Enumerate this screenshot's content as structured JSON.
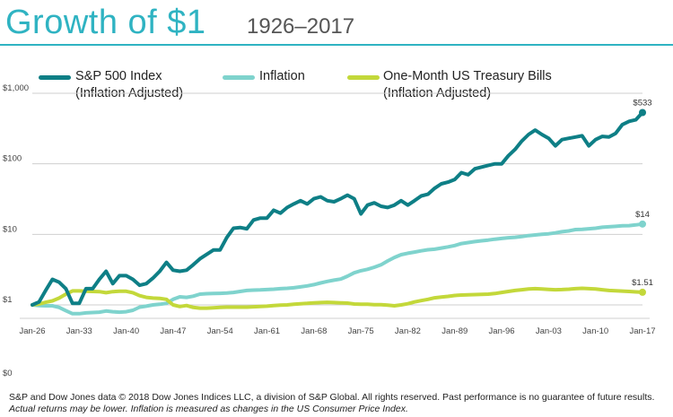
{
  "header": {
    "title": "Growth of $1",
    "subtitle": "1926–2017"
  },
  "legend": [
    {
      "label_line1": "S&P 500 Index",
      "label_line2": "(Inflation Adjusted)",
      "color": "#0e7f86"
    },
    {
      "label_line1": "Inflation",
      "label_line2": "",
      "color": "#7fd3cd"
    },
    {
      "label_line1": "One-Month US Treasury Bills",
      "label_line2": "(Inflation Adjusted)",
      "color": "#c3d83a"
    }
  ],
  "footer": {
    "line1": "S&P and Dow Jones data © 2018 Dow Jones Indices LLC, a division of S&P Global. All rights reserved. Past performance is no guarantee of future results.",
    "line2": "Actual returns may be lower. Inflation is measured as changes in the US Consumer Price Index."
  },
  "chart_data": {
    "type": "line",
    "title": "Growth of $1",
    "subtitle": "1926–2017",
    "xlabel": "",
    "ylabel": "",
    "y_scale": "log",
    "ylim": [
      1,
      1000
    ],
    "x_range": [
      1926,
      2017
    ],
    "x_ticks": [
      1926,
      1933,
      1940,
      1947,
      1954,
      1961,
      1968,
      1975,
      1982,
      1989,
      1996,
      2003,
      2010,
      2017
    ],
    "x_tick_labels": [
      "Jan-26",
      "Jan-33",
      "Jan-40",
      "Jan-47",
      "Jan-54",
      "Jan-61",
      "Jan-68",
      "Jan-75",
      "Jan-82",
      "Jan-89",
      "Jan-96",
      "Jan-03",
      "Jan-10",
      "Jan-17"
    ],
    "y_ticks": [
      1,
      10,
      100,
      1000
    ],
    "y_tick_labels": [
      "$1",
      "$10",
      "$100",
      "$1,000"
    ],
    "y_zero_label": "$0",
    "series": [
      {
        "name": "S&P 500 Index (Inflation Adjusted)",
        "color": "#0e7f86",
        "end_label": "$533",
        "x": [
          1926,
          1927,
          1928,
          1929,
          1930,
          1931,
          1932,
          1933,
          1934,
          1935,
          1936,
          1937,
          1938,
          1939,
          1940,
          1941,
          1942,
          1943,
          1944,
          1945,
          1946,
          1947,
          1948,
          1949,
          1950,
          1951,
          1952,
          1953,
          1954,
          1955,
          1956,
          1957,
          1958,
          1959,
          1960,
          1961,
          1962,
          1963,
          1964,
          1965,
          1966,
          1967,
          1968,
          1969,
          1970,
          1971,
          1972,
          1973,
          1974,
          1975,
          1976,
          1977,
          1978,
          1979,
          1980,
          1981,
          1982,
          1983,
          1984,
          1985,
          1986,
          1987,
          1988,
          1989,
          1990,
          1991,
          1992,
          1993,
          1994,
          1995,
          1996,
          1997,
          1998,
          1999,
          2000,
          2001,
          2002,
          2003,
          2004,
          2005,
          2006,
          2007,
          2008,
          2009,
          2010,
          2011,
          2012,
          2013,
          2014,
          2015,
          2016,
          2017
        ],
        "values": [
          1.0,
          1.1,
          1.6,
          2.3,
          2.1,
          1.7,
          1.05,
          1.05,
          1.7,
          1.7,
          2.3,
          3.0,
          2.0,
          2.6,
          2.6,
          2.3,
          1.9,
          2.0,
          2.4,
          3.0,
          4.0,
          3.1,
          3.0,
          3.1,
          3.7,
          4.5,
          5.2,
          6.0,
          6.0,
          9.0,
          12.2,
          12.5,
          12.0,
          16.0,
          17.0,
          17.0,
          22.0,
          20.0,
          24.0,
          27.0,
          30.0,
          27.0,
          32.0,
          34.0,
          30.0,
          29.0,
          32.0,
          36.0,
          32.0,
          19.5,
          26.0,
          28.0,
          25.0,
          24.0,
          26.0,
          30.0,
          26.0,
          30.0,
          35.0,
          37.0,
          45.0,
          52.0,
          55.0,
          60.0,
          75.0,
          70.0,
          85.0,
          90.0,
          95.0,
          100.0,
          100.0,
          130.0,
          160.0,
          210.0,
          260.0,
          300.0,
          260.0,
          230.0,
          180.0,
          220.0,
          230.0,
          240.0,
          250.0,
          180.0,
          220.0,
          245.0,
          240.0,
          270.0,
          360.0,
          400.0,
          420.0,
          533.0
        ]
      },
      {
        "name": "Inflation",
        "color": "#7fd3cd",
        "end_label": "$14",
        "x": [
          1926,
          1927,
          1928,
          1929,
          1930,
          1931,
          1932,
          1933,
          1934,
          1935,
          1936,
          1937,
          1938,
          1939,
          1940,
          1941,
          1942,
          1943,
          1944,
          1945,
          1946,
          1947,
          1948,
          1949,
          1950,
          1951,
          1952,
          1953,
          1954,
          1955,
          1956,
          1957,
          1958,
          1959,
          1960,
          1961,
          1962,
          1963,
          1964,
          1965,
          1966,
          1967,
          1968,
          1969,
          1970,
          1971,
          1972,
          1973,
          1974,
          1975,
          1976,
          1977,
          1978,
          1979,
          1980,
          1981,
          1982,
          1983,
          1984,
          1985,
          1986,
          1987,
          1988,
          1989,
          1990,
          1991,
          1992,
          1993,
          1994,
          1995,
          1996,
          1997,
          1998,
          1999,
          2000,
          2001,
          2002,
          2003,
          2004,
          2005,
          2006,
          2007,
          2008,
          2009,
          2010,
          2011,
          2012,
          2013,
          2014,
          2015,
          2016,
          2017
        ],
        "values": [
          1.0,
          0.98,
          0.97,
          0.97,
          0.92,
          0.83,
          0.75,
          0.75,
          0.77,
          0.78,
          0.79,
          0.82,
          0.8,
          0.79,
          0.8,
          0.84,
          0.93,
          0.96,
          1.0,
          1.02,
          1.05,
          1.2,
          1.3,
          1.28,
          1.33,
          1.42,
          1.44,
          1.45,
          1.46,
          1.47,
          1.5,
          1.55,
          1.6,
          1.62,
          1.63,
          1.65,
          1.67,
          1.7,
          1.72,
          1.75,
          1.8,
          1.86,
          1.94,
          2.05,
          2.15,
          2.24,
          2.32,
          2.55,
          2.85,
          3.05,
          3.2,
          3.42,
          3.7,
          4.2,
          4.7,
          5.15,
          5.4,
          5.6,
          5.85,
          6.05,
          6.15,
          6.4,
          6.65,
          6.95,
          7.4,
          7.65,
          7.9,
          8.1,
          8.3,
          8.55,
          8.75,
          8.95,
          9.1,
          9.3,
          9.6,
          9.8,
          10.0,
          10.2,
          10.5,
          10.9,
          11.2,
          11.7,
          11.8,
          12.0,
          12.2,
          12.6,
          12.8,
          13.0,
          13.2,
          13.3,
          13.6,
          14.0
        ]
      },
      {
        "name": "One-Month US Treasury Bills (Inflation Adjusted)",
        "color": "#c3d83a",
        "end_label": "$1.51",
        "x": [
          1926,
          1927,
          1928,
          1929,
          1930,
          1931,
          1932,
          1933,
          1934,
          1935,
          1936,
          1937,
          1938,
          1939,
          1940,
          1941,
          1942,
          1943,
          1944,
          1945,
          1946,
          1947,
          1948,
          1949,
          1950,
          1951,
          1952,
          1953,
          1954,
          1955,
          1956,
          1957,
          1958,
          1959,
          1960,
          1961,
          1962,
          1963,
          1964,
          1965,
          1966,
          1967,
          1968,
          1969,
          1970,
          1971,
          1972,
          1973,
          1974,
          1975,
          1976,
          1977,
          1978,
          1979,
          1980,
          1981,
          1982,
          1983,
          1984,
          1985,
          1986,
          1987,
          1988,
          1989,
          1990,
          1991,
          1992,
          1993,
          1994,
          1995,
          1996,
          1997,
          1998,
          1999,
          2000,
          2001,
          2002,
          2003,
          2004,
          2005,
          2006,
          2007,
          2008,
          2009,
          2010,
          2011,
          2012,
          2013,
          2014,
          2015,
          2016,
          2017
        ],
        "values": [
          1.0,
          1.03,
          1.09,
          1.14,
          1.25,
          1.42,
          1.58,
          1.58,
          1.56,
          1.55,
          1.54,
          1.49,
          1.54,
          1.56,
          1.56,
          1.49,
          1.35,
          1.28,
          1.25,
          1.24,
          1.2,
          1.0,
          0.95,
          0.98,
          0.92,
          0.9,
          0.9,
          0.91,
          0.92,
          0.93,
          0.93,
          0.93,
          0.93,
          0.94,
          0.95,
          0.96,
          0.98,
          0.99,
          1.0,
          1.02,
          1.04,
          1.05,
          1.07,
          1.08,
          1.09,
          1.08,
          1.07,
          1.06,
          1.03,
          1.02,
          1.02,
          1.01,
          1.01,
          0.99,
          0.97,
          1.0,
          1.04,
          1.1,
          1.15,
          1.2,
          1.26,
          1.29,
          1.32,
          1.36,
          1.38,
          1.39,
          1.4,
          1.41,
          1.42,
          1.45,
          1.5,
          1.55,
          1.6,
          1.64,
          1.68,
          1.7,
          1.68,
          1.66,
          1.64,
          1.65,
          1.67,
          1.7,
          1.72,
          1.7,
          1.68,
          1.64,
          1.6,
          1.59,
          1.57,
          1.55,
          1.53,
          1.51
        ]
      }
    ]
  }
}
